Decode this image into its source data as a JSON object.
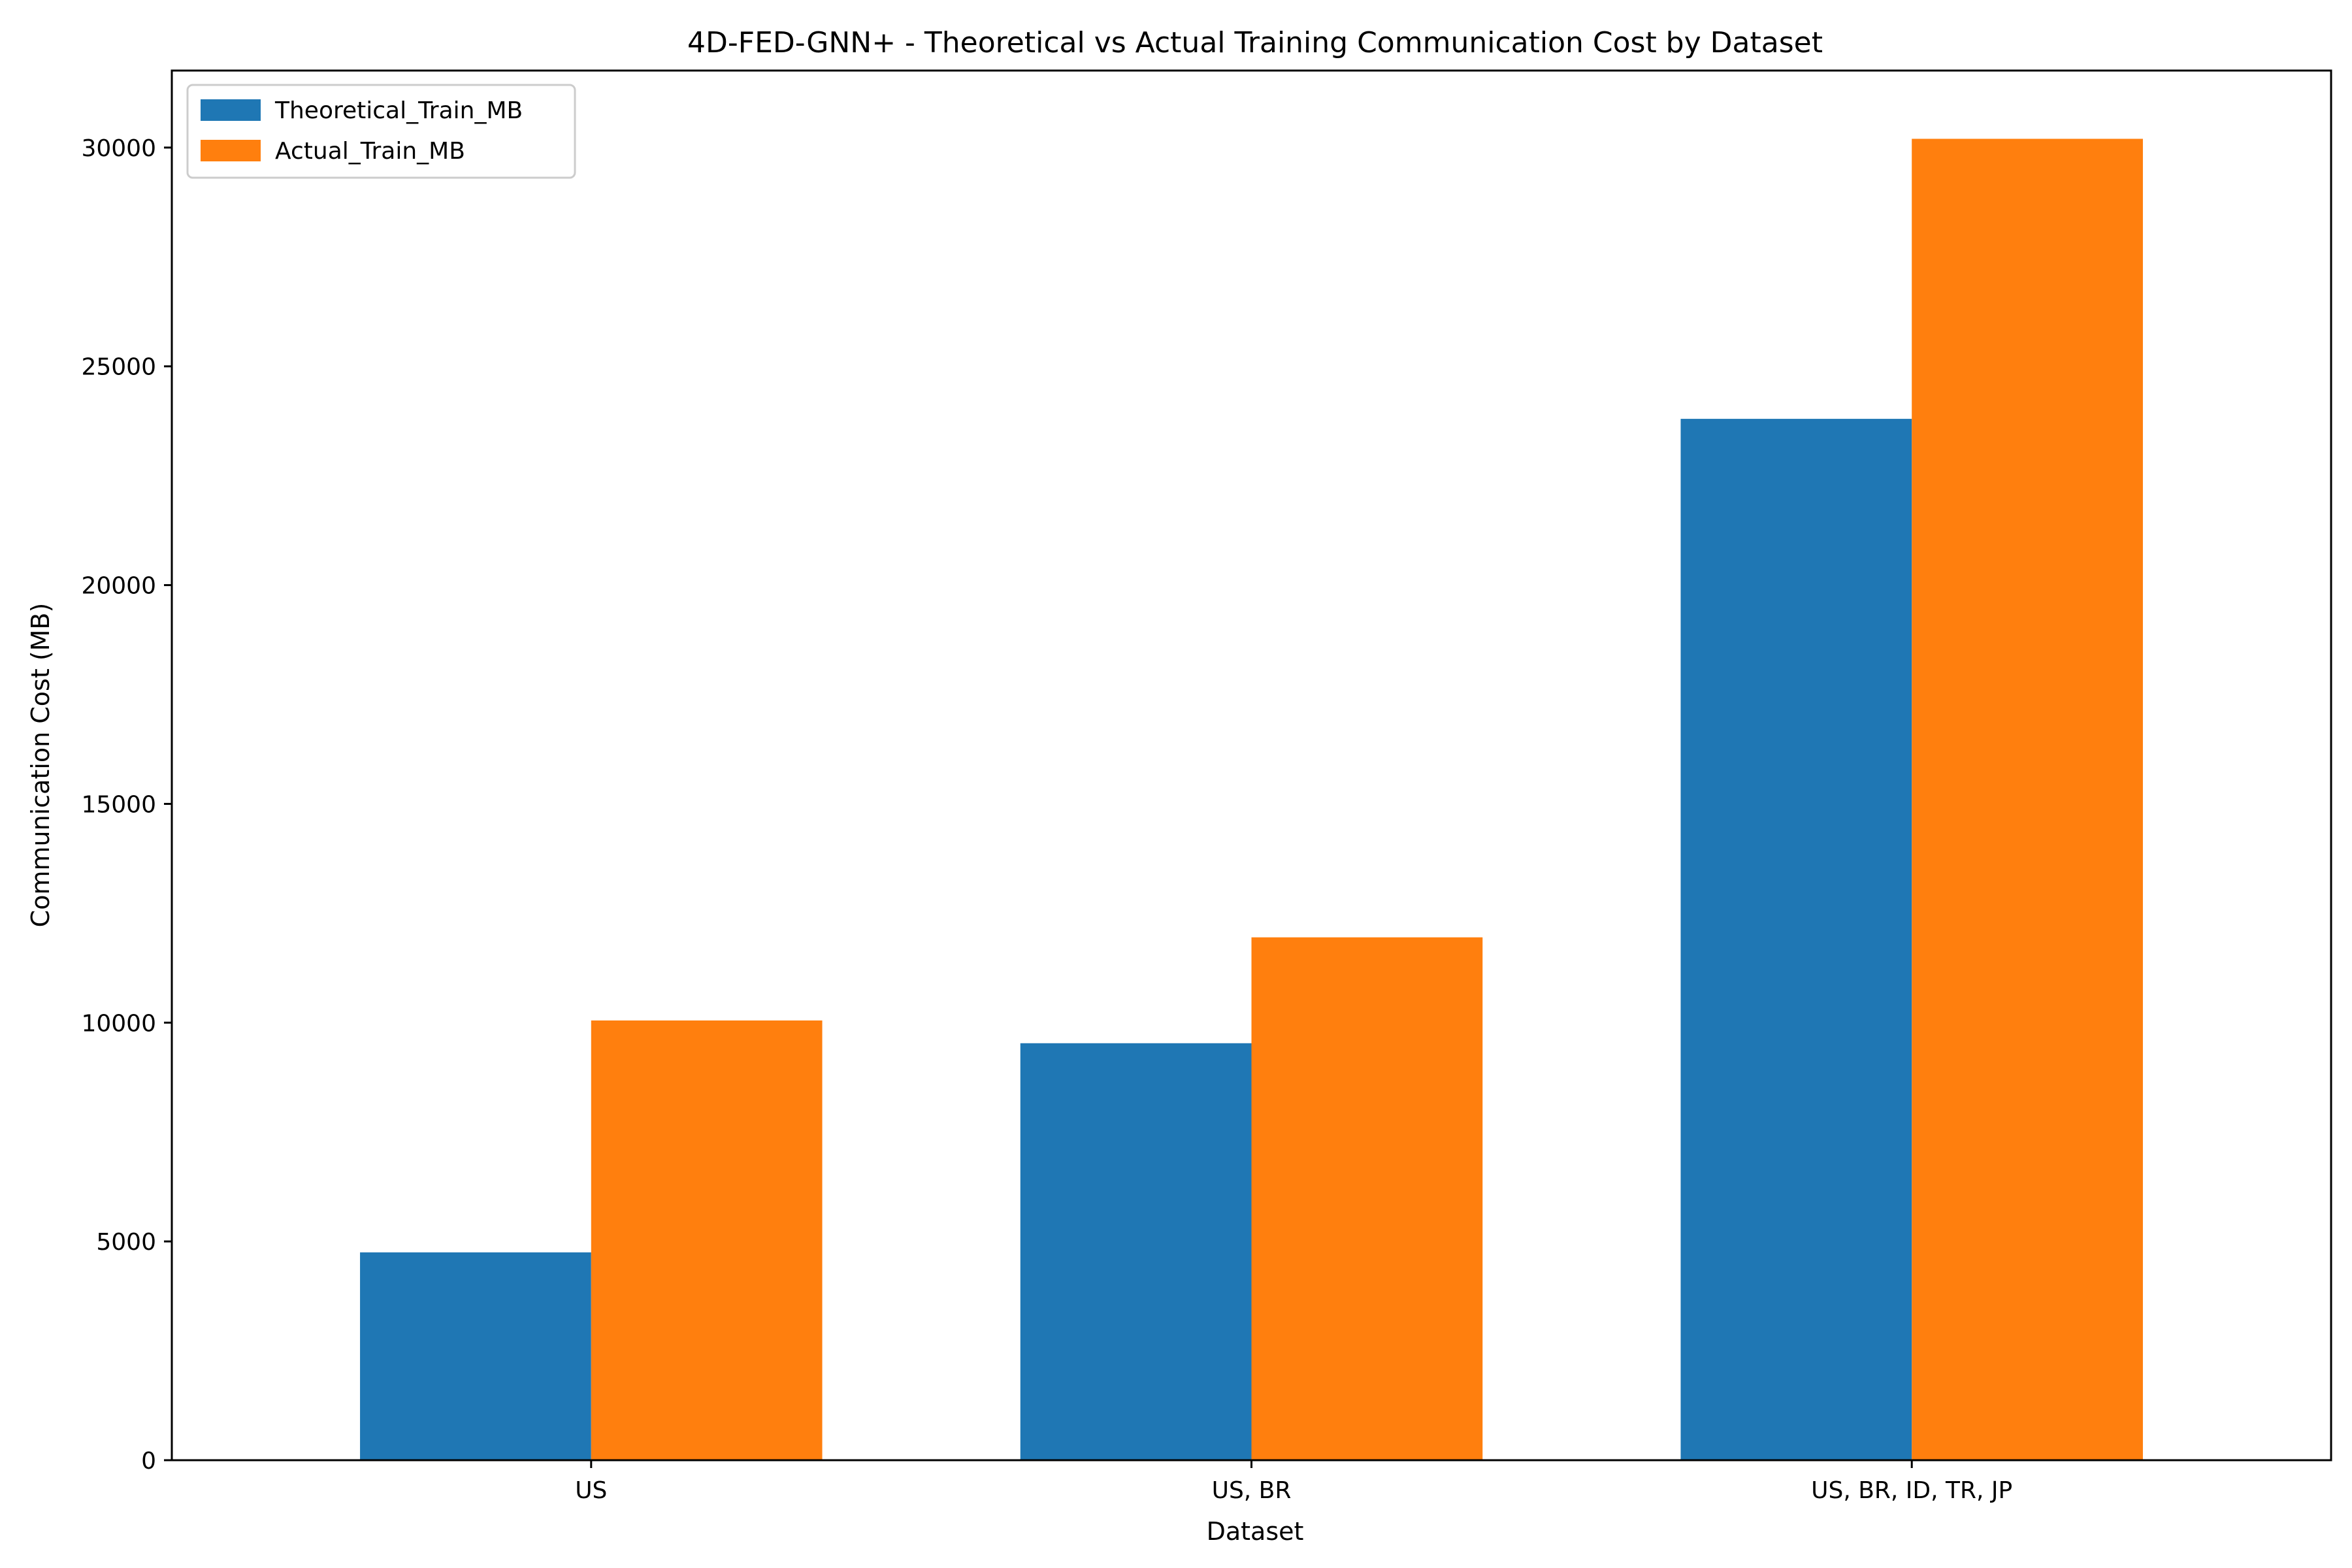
{
  "chart_data": {
    "type": "bar",
    "title": "4D-FED-GNN+ - Theoretical vs Actual Training Communication Cost by Dataset",
    "xlabel": "Dataset",
    "ylabel": "Communication Cost (MB)",
    "categories": [
      "US",
      "US, BR",
      "US, BR, ID, TR, JP"
    ],
    "series": [
      {
        "name": "Theoretical_Train_MB",
        "color": "#1f77b4",
        "values": [
          4750,
          9530,
          23800
        ]
      },
      {
        "name": "Actual_Train_MB",
        "color": "#ff7f0e",
        "values": [
          10050,
          11950,
          30200
        ]
      }
    ],
    "yticks": [
      0,
      5000,
      10000,
      15000,
      20000,
      25000,
      30000
    ],
    "ylim": [
      0,
      31760
    ],
    "grid": false,
    "legend_position": "top-left"
  }
}
